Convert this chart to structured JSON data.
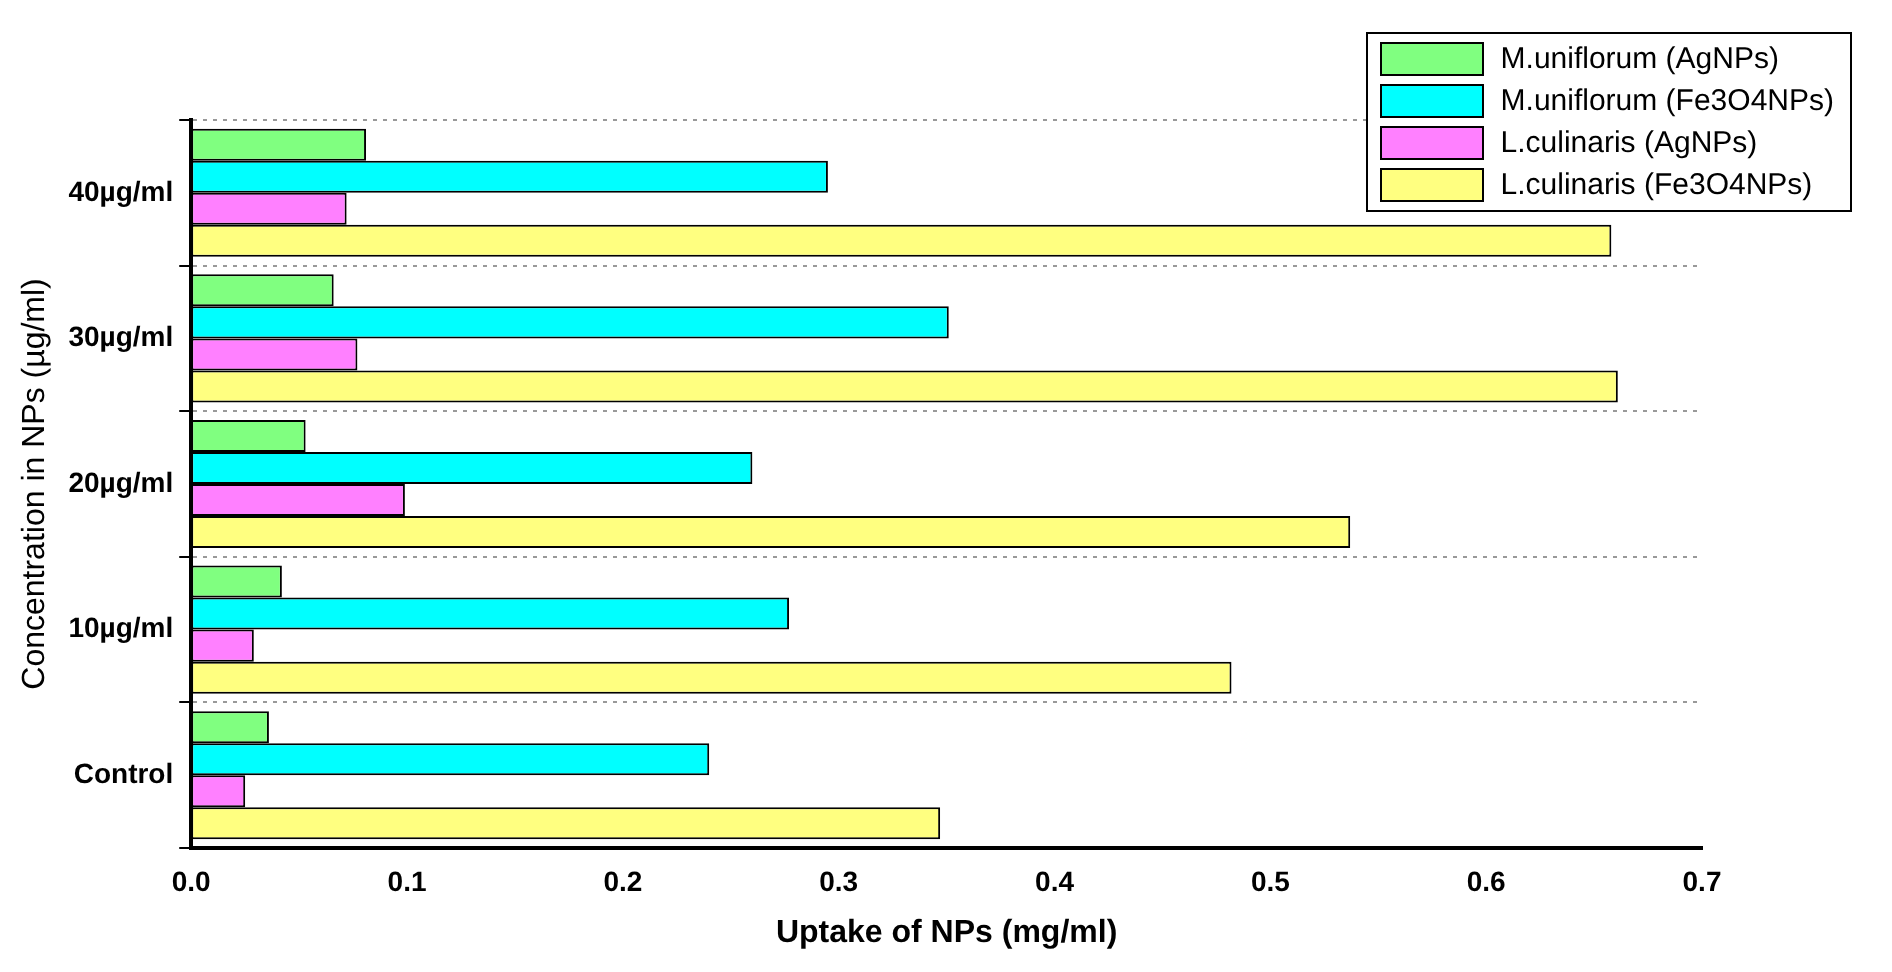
{
  "chart_data": {
    "type": "bar",
    "orientation": "horizontal",
    "xlabel": "Uptake of NPs (mg/ml)",
    "ylabel": "Concentration in NPs (µg/ml)",
    "categories": [
      "40µg/ml",
      "30µg/ml",
      "20µg/ml",
      "10µg/ml",
      "Control"
    ],
    "series": [
      {
        "name": "M.uniflorum (AgNPs)",
        "color": "#80ff80",
        "values": [
          0.081,
          0.066,
          0.053,
          0.042,
          0.036
        ]
      },
      {
        "name": "M.uniflorum (Fe3O4NPs)",
        "color": "#00ffff",
        "values": [
          0.295,
          0.351,
          0.26,
          0.277,
          0.24
        ]
      },
      {
        "name": "L.culinaris (AgNPs)",
        "color": "#ff80ff",
        "values": [
          0.072,
          0.077,
          0.099,
          0.029,
          0.025
        ]
      },
      {
        "name": "L.culinaris (Fe3O4NPs)",
        "color": "#ffff80",
        "values": [
          0.658,
          0.661,
          0.537,
          0.482,
          0.347
        ]
      }
    ],
    "xlim": [
      0,
      0.7
    ],
    "xticks": [
      {
        "value": 0,
        "label": "0.0"
      },
      0.1,
      0.2,
      0.3,
      0.4,
      0.5,
      0.6,
      0.7
    ],
    "grid": "y",
    "legend": "top right"
  }
}
